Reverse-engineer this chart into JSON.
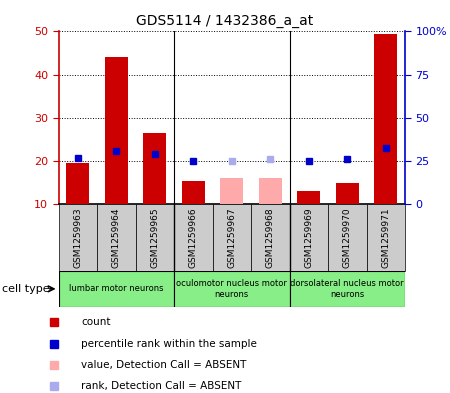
{
  "title": "GDS5114 / 1432386_a_at",
  "samples": [
    "GSM1259963",
    "GSM1259964",
    "GSM1259965",
    "GSM1259966",
    "GSM1259967",
    "GSM1259968",
    "GSM1259969",
    "GSM1259970",
    "GSM1259971"
  ],
  "count_values": [
    19.5,
    44.0,
    26.5,
    15.5,
    null,
    null,
    13.0,
    15.0,
    49.5
  ],
  "count_absent": [
    null,
    null,
    null,
    null,
    16.0,
    16.0,
    null,
    null,
    null
  ],
  "rank_values": [
    27.0,
    31.0,
    29.0,
    25.0,
    null,
    null,
    25.0,
    26.0,
    32.5
  ],
  "rank_absent": [
    null,
    null,
    null,
    null,
    25.0,
    26.0,
    null,
    null,
    null
  ],
  "cell_groups": [
    {
      "label": "lumbar motor neurons",
      "start": 0,
      "end": 3
    },
    {
      "label": "oculomotor nucleus motor\nneurons",
      "start": 3,
      "end": 6
    },
    {
      "label": "dorsolateral nucleus motor\nneurons",
      "start": 6,
      "end": 9
    }
  ],
  "ylim_left": [
    10,
    50
  ],
  "ylim_right": [
    0,
    100
  ],
  "yticks_left": [
    10,
    20,
    30,
    40,
    50
  ],
  "yticks_right": [
    0,
    25,
    50,
    75,
    100
  ],
  "ytick_labels_right": [
    "0",
    "25",
    "50",
    "75",
    "100%"
  ],
  "bar_color": "#CC0000",
  "bar_absent_color": "#FFAAAA",
  "rank_color": "#0000CC",
  "rank_absent_color": "#AAAAEE",
  "group_color": "#88EE88",
  "sample_box_color": "#CCCCCC",
  "bar_width": 0.6
}
